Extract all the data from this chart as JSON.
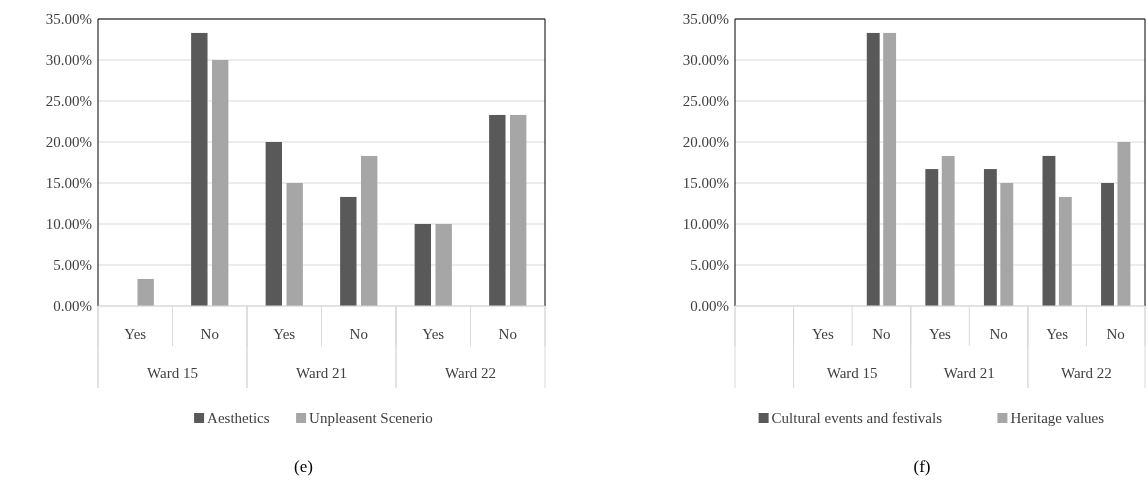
{
  "chart_data": [
    {
      "type": "bar",
      "title": "(e)",
      "categories": [
        "Yes",
        "No",
        "Yes",
        "No",
        "Yes",
        "No"
      ],
      "series": [
        {
          "name": "Aesthetics",
          "color": "#595959",
          "values": [
            0,
            33.3,
            20,
            13.3,
            10,
            23.3
          ]
        },
        {
          "name": "Unpleasent Scenerio",
          "color": "#a6a6a6",
          "values": [
            3.3,
            30,
            15,
            18.3,
            10,
            23.3
          ]
        }
      ],
      "annotations": [
        "Ward 15",
        "Ward 21",
        "Ward 22"
      ],
      "ylim": [
        0,
        35
      ],
      "yticks": [
        {
          "value": 0,
          "label": "0.00%"
        },
        {
          "value": 5,
          "label": "5.00%"
        },
        {
          "value": 10,
          "label": "10.00%"
        },
        {
          "value": 15,
          "label": "15.00%"
        },
        {
          "value": 20,
          "label": "20.00%"
        },
        {
          "value": 25,
          "label": "25.00%"
        },
        {
          "value": 30,
          "label": "30.00%"
        },
        {
          "value": 35,
          "label": "35.00%"
        }
      ],
      "grid": "y",
      "legend": "bottom"
    },
    {
      "type": "bar",
      "title": "(f)",
      "categories": [
        null,
        "Yes",
        "No",
        "Yes",
        "No",
        "Yes",
        "No"
      ],
      "series": [
        {
          "name": "Cultural events and festivals",
          "color": "#595959",
          "values": [
            null,
            0,
            33.3,
            16.7,
            16.7,
            18.3,
            15
          ]
        },
        {
          "name": "Heritage values",
          "color": "#a6a6a6",
          "values": [
            null,
            0,
            33.3,
            18.3,
            15,
            13.3,
            20
          ]
        }
      ],
      "annotations": [
        "Ward 15",
        "Ward 21",
        "Ward 22"
      ],
      "ylim": [
        0,
        35
      ],
      "yticks": [
        {
          "value": 0,
          "label": "0.00%"
        },
        {
          "value": 5,
          "label": "5.00%"
        },
        {
          "value": 10,
          "label": "10.00%"
        },
        {
          "value": 15,
          "label": "15.00%"
        },
        {
          "value": 20,
          "label": "20.00%"
        },
        {
          "value": 25,
          "label": "25.00%"
        },
        {
          "value": 30,
          "label": "30.00%"
        },
        {
          "value": 35,
          "label": "35.00%"
        }
      ],
      "grid": "y",
      "legend": "bottom"
    }
  ]
}
